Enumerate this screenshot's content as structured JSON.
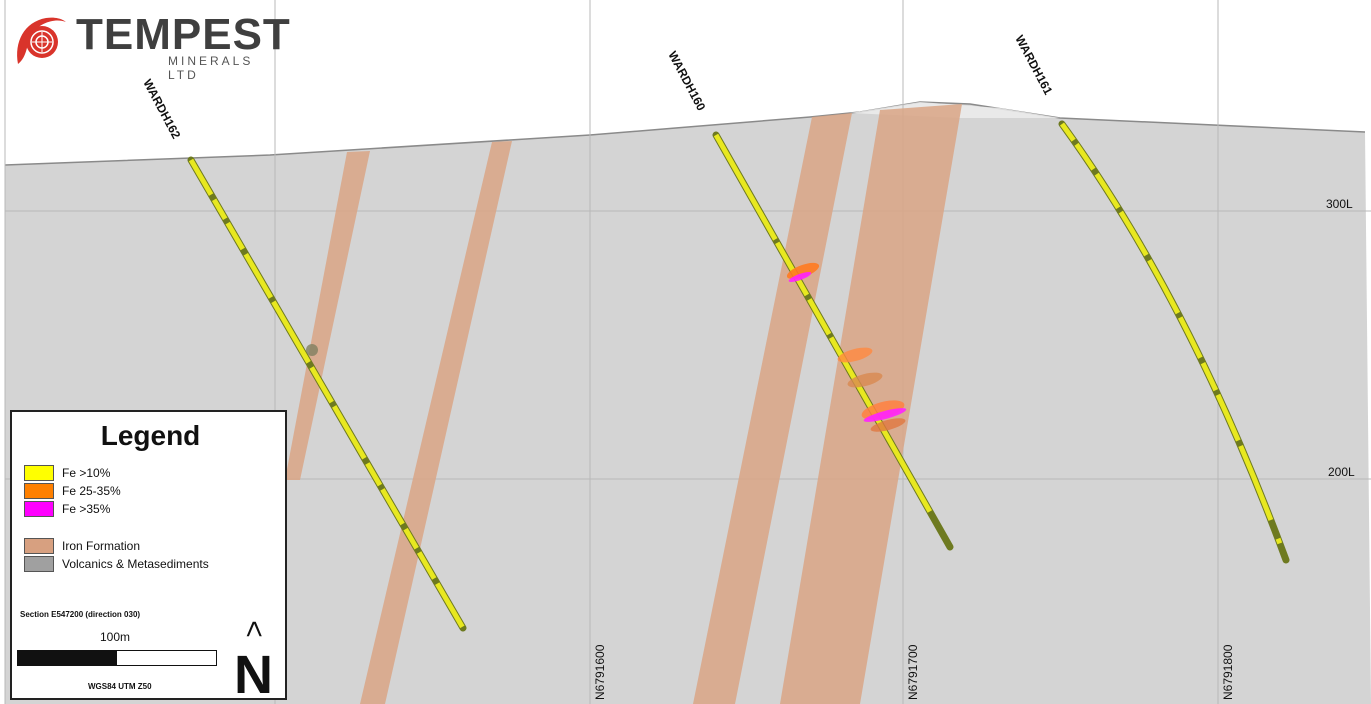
{
  "logo": {
    "name": "TEMPEST",
    "subtitle": "MINERALS LTD"
  },
  "drillholes": [
    {
      "id": "WARDH162"
    },
    {
      "id": "WARDH160"
    },
    {
      "id": "WARDH161"
    }
  ],
  "levels": [
    "300L",
    "200L"
  ],
  "northings": [
    "N6791600",
    "N6791700",
    "N6791800"
  ],
  "legend": {
    "title": "Legend",
    "items": [
      {
        "label": "Fe >10%",
        "color": "#ffff00"
      },
      {
        "label": "Fe 25-35%",
        "color": "#ff8000"
      },
      {
        "label": "Fe >35%",
        "color": "#ff00ff"
      },
      {
        "label": "Iron Formation",
        "color": "#d7a080"
      },
      {
        "label": "Volcanics & Metasediments",
        "color": "#a0a0a0"
      }
    ],
    "section_label": "Section E547200 (direction 030)",
    "scale_label": "100m",
    "projection_label": "WGS84 UTM Z50",
    "north_letter": "N",
    "north_arrow": ">"
  },
  "colors": {
    "ground": "#d4d4d4",
    "iron_formation": "#d7a080",
    "grid": "#b0b0b0",
    "logo_red": "#d9342b"
  }
}
